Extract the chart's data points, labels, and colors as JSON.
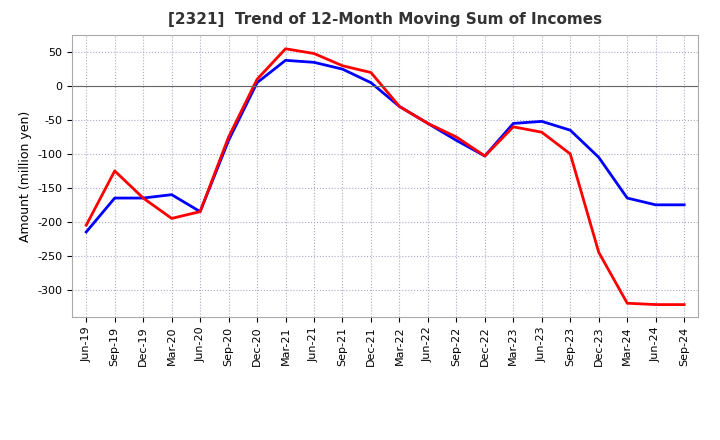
{
  "title": "[2321]  Trend of 12-Month Moving Sum of Incomes",
  "ylabel": "Amount (million yen)",
  "labels": [
    "Jun-19",
    "Sep-19",
    "Dec-19",
    "Mar-20",
    "Jun-20",
    "Sep-20",
    "Dec-20",
    "Mar-21",
    "Jun-21",
    "Sep-21",
    "Dec-21",
    "Mar-22",
    "Jun-22",
    "Sep-22",
    "Dec-22",
    "Mar-23",
    "Jun-23",
    "Sep-23",
    "Dec-23",
    "Mar-24",
    "Jun-24",
    "Sep-24"
  ],
  "ordinary_income": [
    -215,
    -165,
    -165,
    -160,
    -185,
    -80,
    5,
    38,
    35,
    25,
    5,
    -30,
    -55,
    -80,
    -103,
    -55,
    -52,
    -65,
    -105,
    -165,
    -175,
    -175
  ],
  "net_income": [
    -205,
    -125,
    -165,
    -195,
    -185,
    -75,
    10,
    55,
    48,
    30,
    20,
    -30,
    -55,
    -75,
    -103,
    -60,
    -68,
    -100,
    -245,
    -320,
    -322,
    -322
  ],
  "ordinary_color": "#0000ff",
  "net_color": "#ff0000",
  "bg_color": "#ffffff",
  "plot_bg_color": "#ffffff",
  "ylim": [
    -340,
    75
  ],
  "yticks": [
    50,
    0,
    -50,
    -100,
    -150,
    -200,
    -250,
    -300
  ],
  "grid_color": "#aaaacc",
  "title_fontsize": 11,
  "axis_fontsize": 9,
  "tick_fontsize": 8,
  "legend_fontsize": 9,
  "linewidth": 2.0
}
